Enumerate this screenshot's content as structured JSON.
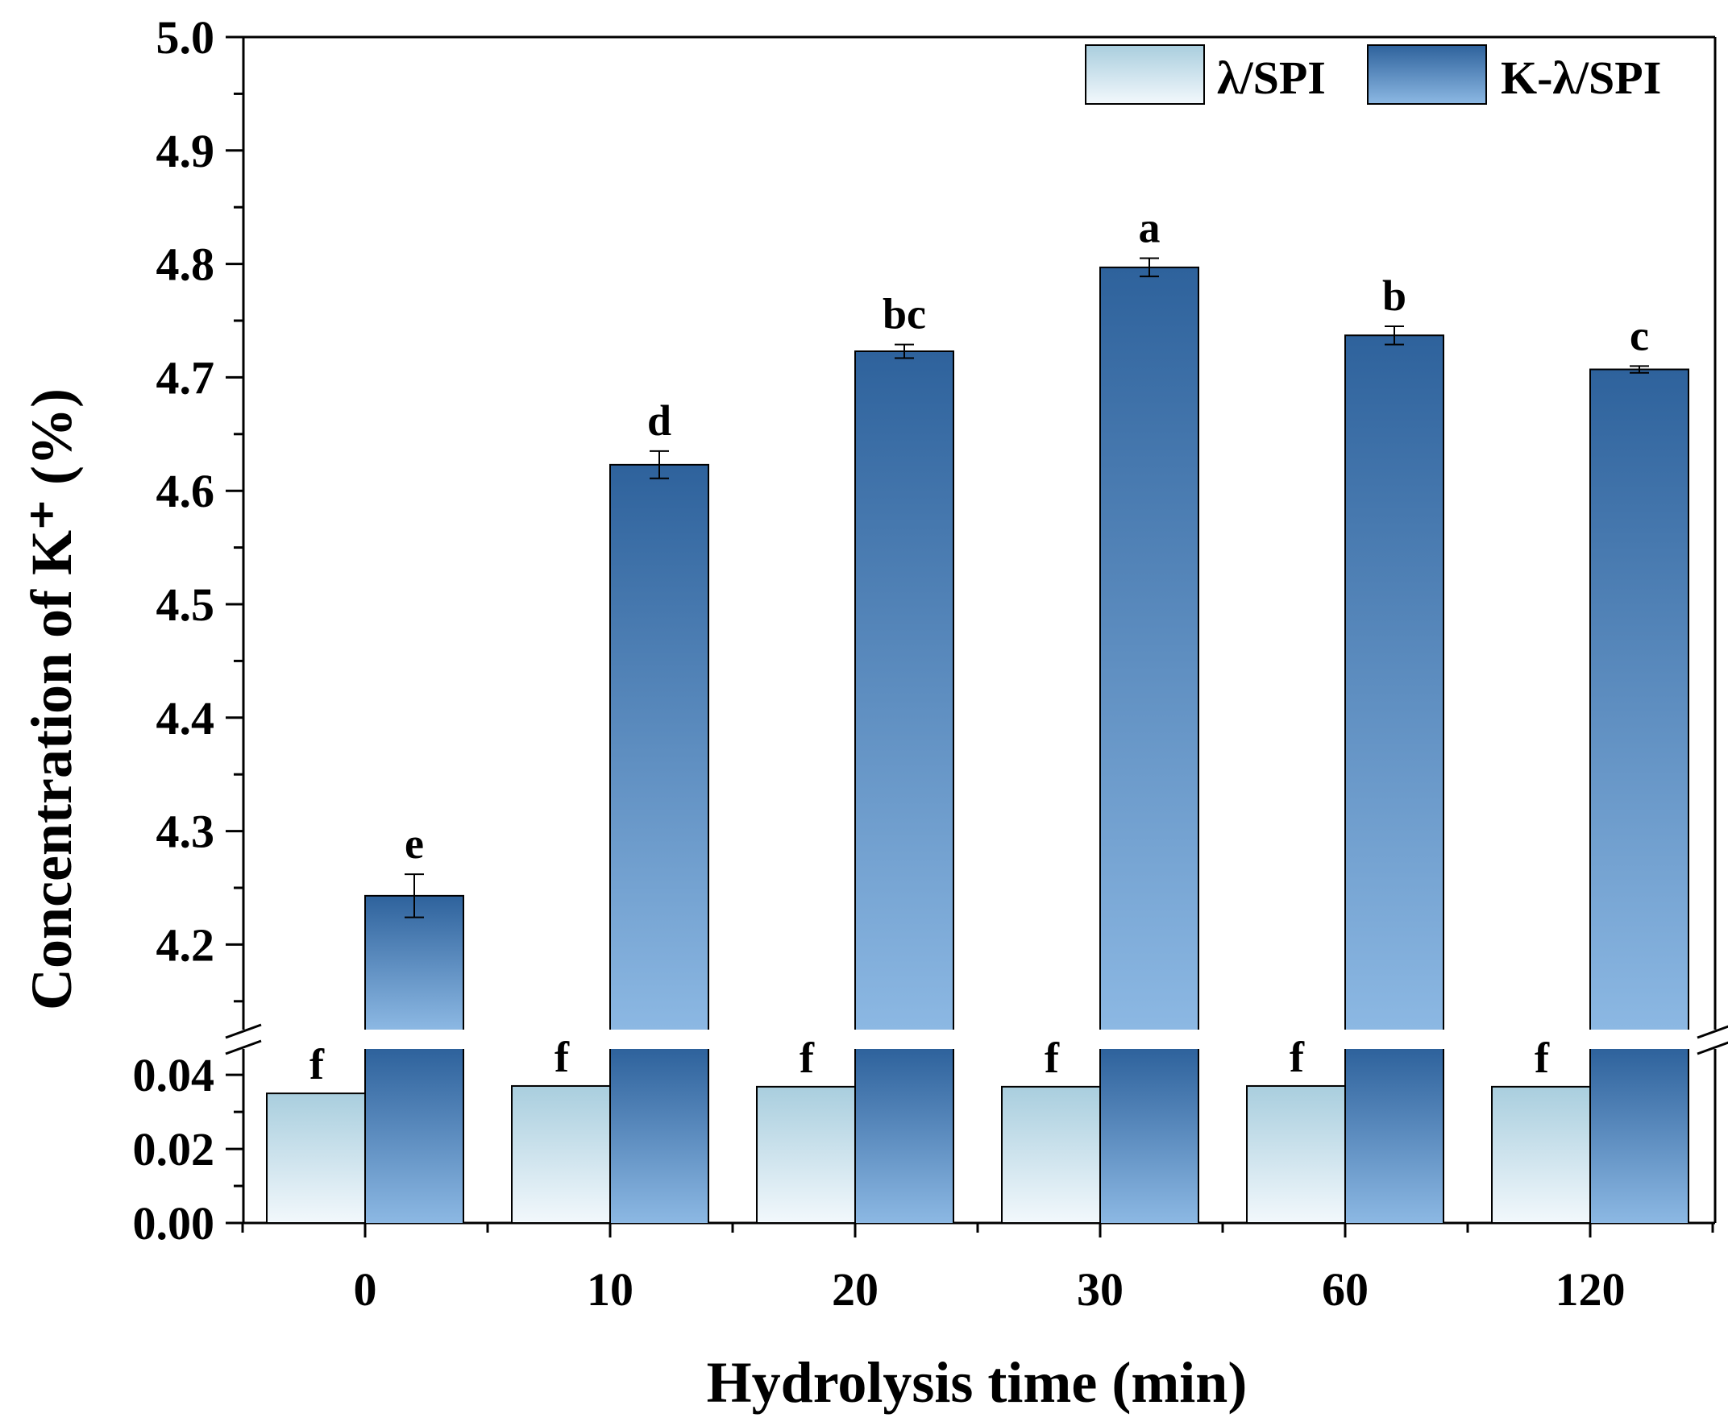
{
  "chart_data": {
    "type": "bar",
    "xlabel": "Hydrolysis time (min)",
    "ylabel": "Concentration of K⁺ (%)",
    "categories": [
      "0",
      "10",
      "20",
      "30",
      "60",
      "120"
    ],
    "axis_break": true,
    "lower_ylim": [
      0.0,
      0.047
    ],
    "upper_ylim": [
      4.125,
      5.0
    ],
    "lower_ticks": [
      "0.00",
      "0.02",
      "0.04"
    ],
    "upper_ticks": [
      "4.2",
      "4.3",
      "4.4",
      "4.5",
      "4.6",
      "4.7",
      "4.8",
      "4.9",
      "5.0"
    ],
    "legend_position": "top-right",
    "series": [
      {
        "name": "λ/SPI",
        "values": [
          0.035,
          0.037,
          0.0368,
          0.0368,
          0.037,
          0.0368
        ],
        "errors": [
          0,
          0,
          0,
          0,
          0,
          0
        ],
        "labels": [
          "f",
          "f",
          "f",
          "f",
          "f",
          "f"
        ],
        "color_top": "#a9cede",
        "color_bottom": "#f2f8fc"
      },
      {
        "name": "K-λ/SPI",
        "values": [
          4.243,
          4.623,
          4.723,
          4.797,
          4.737,
          4.707
        ],
        "errors": [
          0.019,
          0.012,
          0.006,
          0.008,
          0.008,
          0.003
        ],
        "labels": [
          "e",
          "d",
          "bc",
          "a",
          "b",
          "c"
        ],
        "color_top": "#2e629c",
        "color_bottom": "#8cb8e3"
      }
    ]
  }
}
